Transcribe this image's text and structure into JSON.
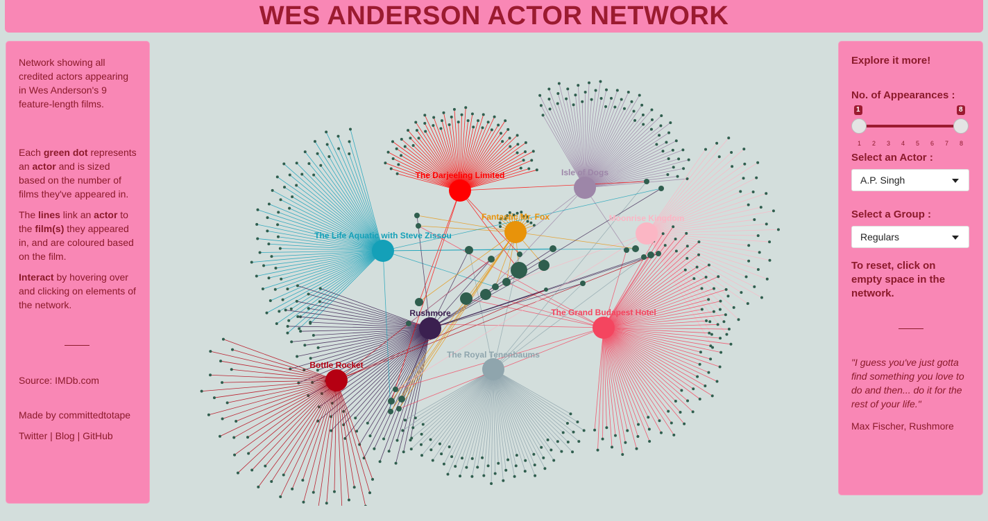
{
  "title": "WES ANDERSON ACTOR NETWORK",
  "left_panel": {
    "intro": "Network showing all credited actors appearing in Wes Anderson's 9 feature-length films.",
    "para1_pre": "Each ",
    "para1_b1": "green dot",
    "para1_mid": " represents an ",
    "para1_b2": "actor",
    "para1_post": " and is sized based on the number of films they've appeared in.",
    "para2_pre": "The ",
    "para2_b1": "lines",
    "para2_mid1": " link an ",
    "para2_b2": "actor",
    "para2_mid2": " to the ",
    "para2_b3": "film(s)",
    "para2_post": " they appeared in, and are coloured based on the film.",
    "para3_b": "Interact",
    "para3_post": " by hovering over and clicking on elements of the network.",
    "source": "Source: IMDb.com",
    "made_by": "Made by committedtotape",
    "links": [
      "Twitter",
      "Blog",
      "GitHub"
    ],
    "link_sep": "|"
  },
  "right_panel": {
    "explore": "Explore it more!",
    "appearances_label": "No. of Appearances :",
    "slider_min": 1,
    "slider_max": 8,
    "slider_ticks": [
      "1",
      "2",
      "3",
      "4",
      "5",
      "6",
      "7",
      "8"
    ],
    "actor_label": "Select an Actor :",
    "actor_value": "A.P. Singh",
    "group_label": "Select a Group :",
    "group_value": "Regulars",
    "reset": "To reset, click on empty space in the network.",
    "quote": "\"I guess you've just gotta find something you love to do and then... do it for the rest of your life.\"",
    "quote_author": "Max Fischer, Rushmore"
  },
  "colors": {
    "background": "#d3dedc",
    "panel": "#f987b5",
    "title": "#9b1b30",
    "actor_dot": "#2f5e4e"
  },
  "network": {
    "films": [
      {
        "name": "The Darjeeling Limited",
        "color": "#ff0000",
        "actors": 58
      },
      {
        "name": "Isle of Dogs",
        "color": "#9d86a8",
        "actors": 58
      },
      {
        "name": "Fantastic Mr. Fox",
        "color": "#e8930a",
        "actors": 14
      },
      {
        "name": "Moonrise Kingdom",
        "color": "#fbb6c4",
        "actors": 42
      },
      {
        "name": "The Life Aquatic with Steve Zissou",
        "color": "#14a0b8",
        "actors": 58
      },
      {
        "name": "The Grand Budapest Hotel",
        "color": "#f4455f",
        "actors": 70
      },
      {
        "name": "Rushmore",
        "color": "#3b2050",
        "actors": 48
      },
      {
        "name": "Bottle Rocket",
        "color": "#b50012",
        "actors": 38
      },
      {
        "name": "The Royal Tenenbaums",
        "color": "#8fa5ad",
        "actors": 60
      }
    ]
  }
}
